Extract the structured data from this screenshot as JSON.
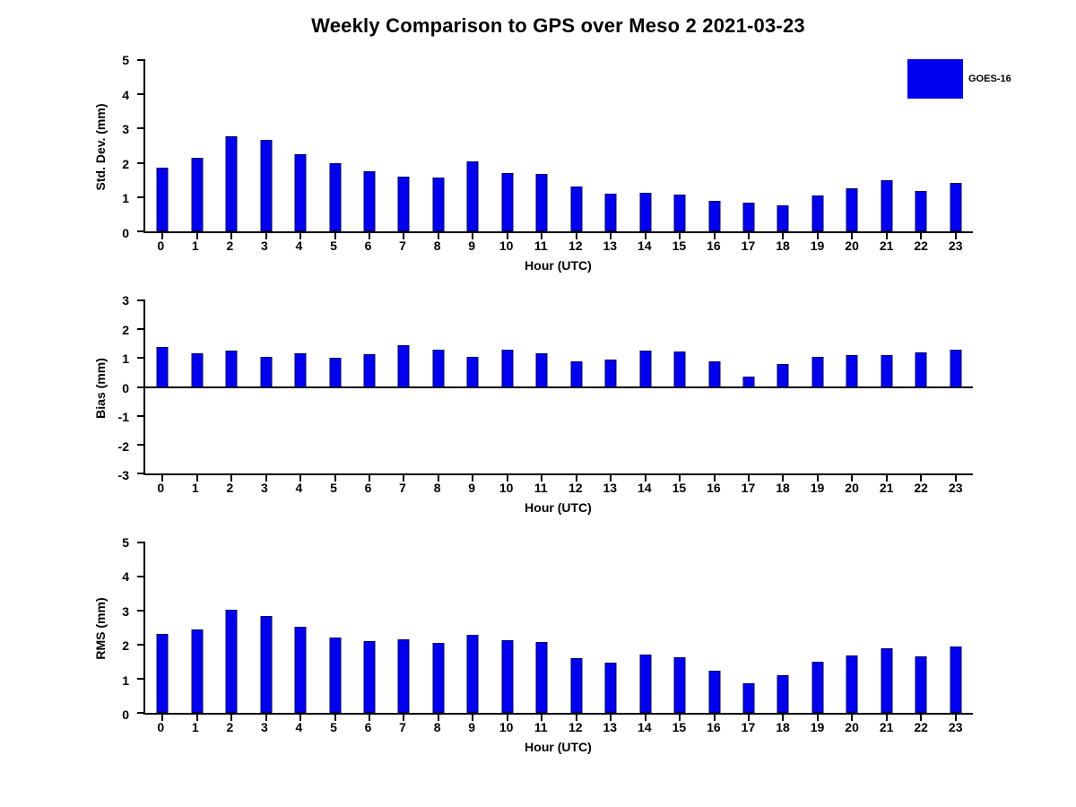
{
  "title": "Weekly Comparison to GPS over Meso 2 2021-03-23",
  "legend": {
    "label": "GOES-16",
    "color": "#0000ee",
    "position": "outside-top-right"
  },
  "chart_data": [
    {
      "type": "bar",
      "series_name": "GOES-16",
      "ylabel": "Std. Dev. (mm)",
      "xlabel": "Hour (UTC)",
      "ylim": [
        0,
        5
      ],
      "yticks": [
        0,
        1,
        2,
        3,
        4,
        5
      ],
      "grid": false,
      "categories": [
        "0",
        "1",
        "2",
        "3",
        "4",
        "5",
        "6",
        "7",
        "8",
        "9",
        "10",
        "11",
        "12",
        "13",
        "14",
        "15",
        "16",
        "17",
        "18",
        "19",
        "20",
        "21",
        "22",
        "23"
      ],
      "values": [
        1.87,
        2.15,
        2.77,
        2.67,
        2.25,
        2.0,
        1.75,
        1.6,
        1.58,
        2.05,
        1.7,
        1.68,
        1.3,
        1.1,
        1.12,
        1.07,
        0.88,
        0.83,
        0.77,
        1.05,
        1.25,
        1.5,
        1.18,
        1.42
      ]
    },
    {
      "type": "bar",
      "series_name": "GOES-16",
      "ylabel": "Bias (mm)",
      "xlabel": "Hour (UTC)",
      "ylim": [
        -3,
        3
      ],
      "yticks": [
        -3,
        -2,
        -1,
        0,
        1,
        2,
        3
      ],
      "grid": false,
      "categories": [
        "0",
        "1",
        "2",
        "3",
        "4",
        "5",
        "6",
        "7",
        "8",
        "9",
        "10",
        "11",
        "12",
        "13",
        "14",
        "15",
        "16",
        "17",
        "18",
        "19",
        "20",
        "21",
        "22",
        "23"
      ],
      "values": [
        1.38,
        1.18,
        1.25,
        1.05,
        1.18,
        1.0,
        1.15,
        1.45,
        1.28,
        1.05,
        1.3,
        1.18,
        0.9,
        0.95,
        1.25,
        1.22,
        0.9,
        0.35,
        0.8,
        1.05,
        1.1,
        1.1,
        1.2,
        1.3
      ]
    },
    {
      "type": "bar",
      "series_name": "GOES-16",
      "ylabel": "RMS (mm)",
      "xlabel": "Hour (UTC)",
      "ylim": [
        0,
        5
      ],
      "yticks": [
        0,
        1,
        2,
        3,
        4,
        5
      ],
      "grid": false,
      "categories": [
        "0",
        "1",
        "2",
        "3",
        "4",
        "5",
        "6",
        "7",
        "8",
        "9",
        "10",
        "11",
        "12",
        "13",
        "14",
        "15",
        "16",
        "17",
        "18",
        "19",
        "20",
        "21",
        "22",
        "23"
      ],
      "values": [
        2.32,
        2.45,
        3.02,
        2.85,
        2.52,
        2.22,
        2.1,
        2.15,
        2.05,
        2.3,
        2.12,
        2.07,
        1.6,
        1.47,
        1.7,
        1.62,
        1.25,
        0.88,
        1.1,
        1.5,
        1.68,
        1.9,
        1.67,
        1.95
      ]
    }
  ]
}
